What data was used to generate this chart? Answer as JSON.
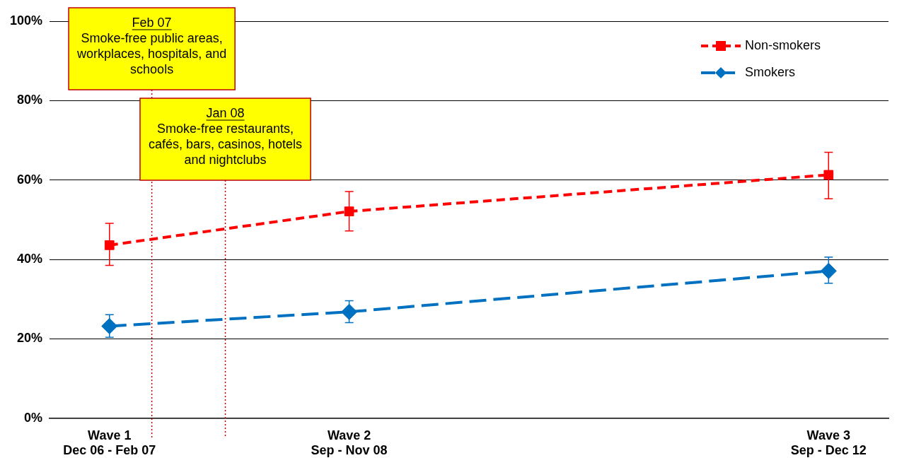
{
  "chart_data": {
    "type": "line",
    "categories": [
      null,
      "Wave 1\nDec 06 - Feb 07",
      null,
      null,
      null,
      null,
      null,
      "Wave 2\nSep - Nov 08",
      null,
      null,
      null,
      null,
      null,
      null,
      null,
      null,
      null,
      null,
      null,
      "Wave 3\nSep - Dec 12",
      null
    ],
    "ylim": [
      0,
      100
    ],
    "yticks": [
      {
        "value": 0,
        "label": "0%"
      },
      {
        "value": 20,
        "label": "20%"
      },
      {
        "value": 40,
        "label": "40%"
      },
      {
        "value": 60,
        "label": "60%"
      },
      {
        "value": 80,
        "label": "80%"
      },
      {
        "value": 100,
        "label": "100%"
      }
    ],
    "series": [
      {
        "name": "Non-smokers",
        "color": "#ff0000",
        "marker": "square",
        "line_style": "dashed",
        "x": [
          "Wave 1\nDec 06 - Feb 07",
          "Wave 2\nSep - Nov 08",
          "Wave 3\nSep - Dec 12"
        ],
        "values": [
          43.6,
          52.1,
          61.3
        ],
        "errors": [
          [
            38.5,
            49.1
          ],
          [
            47.2,
            57.1
          ],
          [
            55.3,
            67.0
          ]
        ]
      },
      {
        "name": "Smokers",
        "color": "#0070c0",
        "marker": "diamond",
        "line_style": "dashed",
        "x": [
          "Wave 1\nDec 06 - Feb 07",
          "Wave 2\nSep - Nov 08",
          "Wave 3\nSep - Dec 12"
        ],
        "values": [
          23.2,
          26.8,
          37.1
        ],
        "errors": [
          [
            20.4,
            26.1
          ],
          [
            24.1,
            29.6
          ],
          [
            34.0,
            40.6
          ]
        ]
      }
    ],
    "annotations": [
      "Feb 07\nSmoke-free public areas,\nworkplaces, hospitals, and\nschools",
      "Jan 08\nSmoke-free restaurants,\ncafés, bars, casinos, hotels\nand nightclubs"
    ],
    "grid": "y",
    "legend": "top right"
  }
}
